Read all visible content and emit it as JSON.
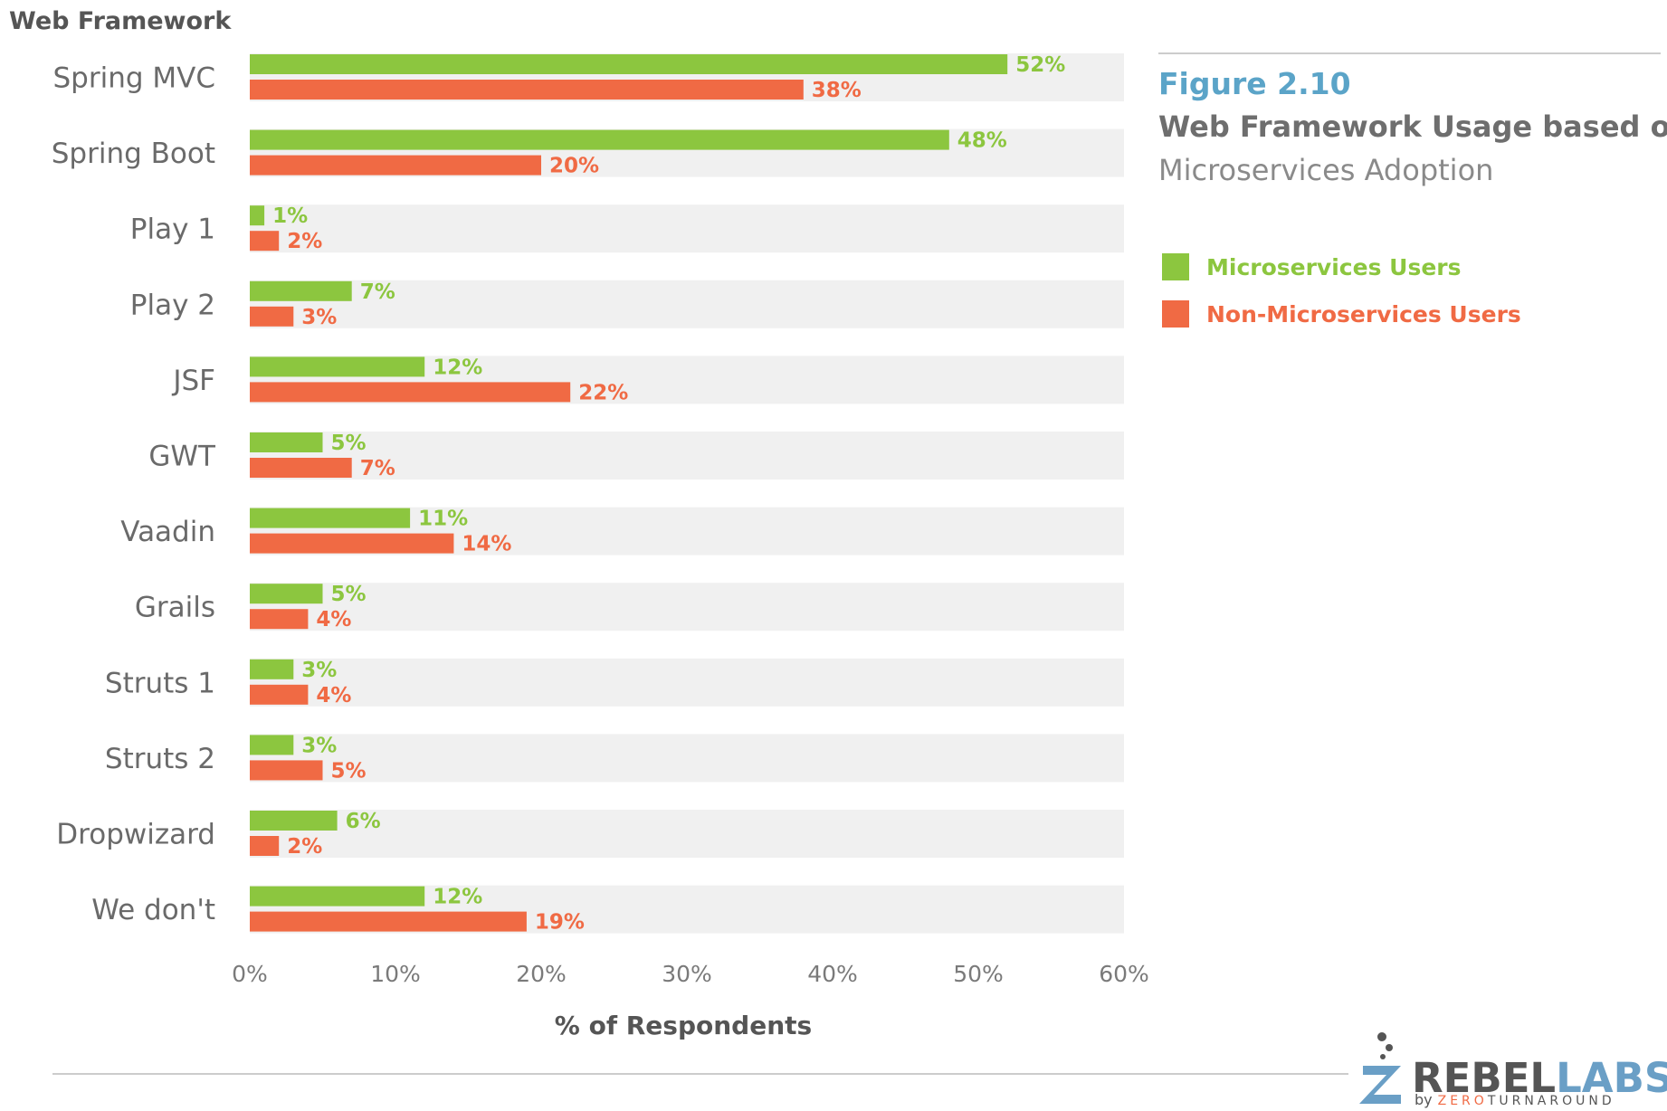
{
  "colors": {
    "micro": "#8cc63f",
    "non_micro": "#f06a44",
    "row_bg": "#f0f0f0",
    "figure_number": "#5ba4c8",
    "logo_blue": "#6a9fc6",
    "logo_gray": "#555555",
    "logo_orange": "#f06a44",
    "rule": "#cccccc"
  },
  "header": {
    "category_header": "Web Framework"
  },
  "figure": {
    "number": "Figure 2.10",
    "title": "Web Framework Usage based on",
    "subtitle": "Microservices Adoption"
  },
  "chart_data": {
    "type": "bar",
    "orientation": "horizontal",
    "categories": [
      "Spring MVC",
      "Spring Boot",
      "Play 1",
      "Play 2",
      "JSF",
      "GWT",
      "Vaadin",
      "Grails",
      "Struts 1",
      "Struts 2",
      "Dropwizard",
      "We don't"
    ],
    "series": [
      {
        "name": "Microservices Users",
        "values": [
          52,
          48,
          1,
          7,
          12,
          5,
          11,
          5,
          3,
          3,
          6,
          12
        ]
      },
      {
        "name": "Non-Microservices Users",
        "values": [
          38,
          20,
          2,
          3,
          22,
          7,
          14,
          4,
          4,
          5,
          2,
          19
        ]
      }
    ],
    "value_suffix": "%",
    "xlim": [
      0,
      60
    ],
    "xticks": [
      0,
      10,
      20,
      30,
      40,
      50,
      60
    ],
    "xtick_labels": [
      "0%",
      "10%",
      "20%",
      "30%",
      "40%",
      "50%",
      "60%"
    ],
    "xlabel": "% of Respondents",
    "ylabel": "Web Framework",
    "grid": false,
    "legend_position": "right"
  },
  "logo": {
    "main_left": "REBEL",
    "main_right": "LABS",
    "by": "by",
    "zero": "ZERO",
    "turnaround": "TURNAROUND"
  }
}
